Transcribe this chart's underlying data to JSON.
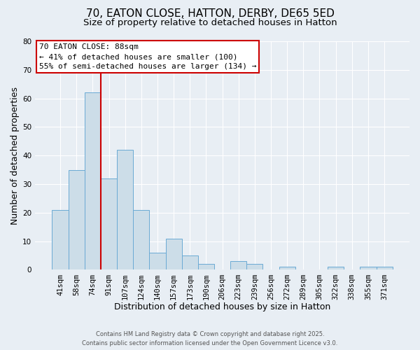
{
  "title": "70, EATON CLOSE, HATTON, DERBY, DE65 5ED",
  "subtitle": "Size of property relative to detached houses in Hatton",
  "xlabel": "Distribution of detached houses by size in Hatton",
  "ylabel": "Number of detached properties",
  "categories": [
    "41sqm",
    "58sqm",
    "74sqm",
    "91sqm",
    "107sqm",
    "124sqm",
    "140sqm",
    "157sqm",
    "173sqm",
    "190sqm",
    "206sqm",
    "223sqm",
    "239sqm",
    "256sqm",
    "272sqm",
    "289sqm",
    "305sqm",
    "322sqm",
    "338sqm",
    "355sqm",
    "371sqm"
  ],
  "values": [
    21,
    35,
    62,
    32,
    42,
    21,
    6,
    11,
    5,
    2,
    0,
    3,
    2,
    0,
    1,
    0,
    0,
    1,
    0,
    1,
    1
  ],
  "bar_color": "#ccdde8",
  "bar_edge_color": "#6aaad4",
  "vline_x": 2.5,
  "vline_color": "#cc0000",
  "ylim": [
    0,
    80
  ],
  "yticks": [
    0,
    10,
    20,
    30,
    40,
    50,
    60,
    70,
    80
  ],
  "annotation_title": "70 EATON CLOSE: 88sqm",
  "annotation_line1": "← 41% of detached houses are smaller (100)",
  "annotation_line2": "55% of semi-detached houses are larger (134) →",
  "annotation_box_facecolor": "#ffffff",
  "annotation_box_edgecolor": "#cc0000",
  "footer1": "Contains HM Land Registry data © Crown copyright and database right 2025.",
  "footer2": "Contains public sector information licensed under the Open Government Licence v3.0.",
  "background_color": "#e8eef4",
  "grid_color": "#ffffff",
  "title_fontsize": 11,
  "subtitle_fontsize": 9.5,
  "xlabel_fontsize": 9,
  "ylabel_fontsize": 9,
  "tick_fontsize": 7.5,
  "annotation_fontsize": 8,
  "footer_fontsize": 6
}
